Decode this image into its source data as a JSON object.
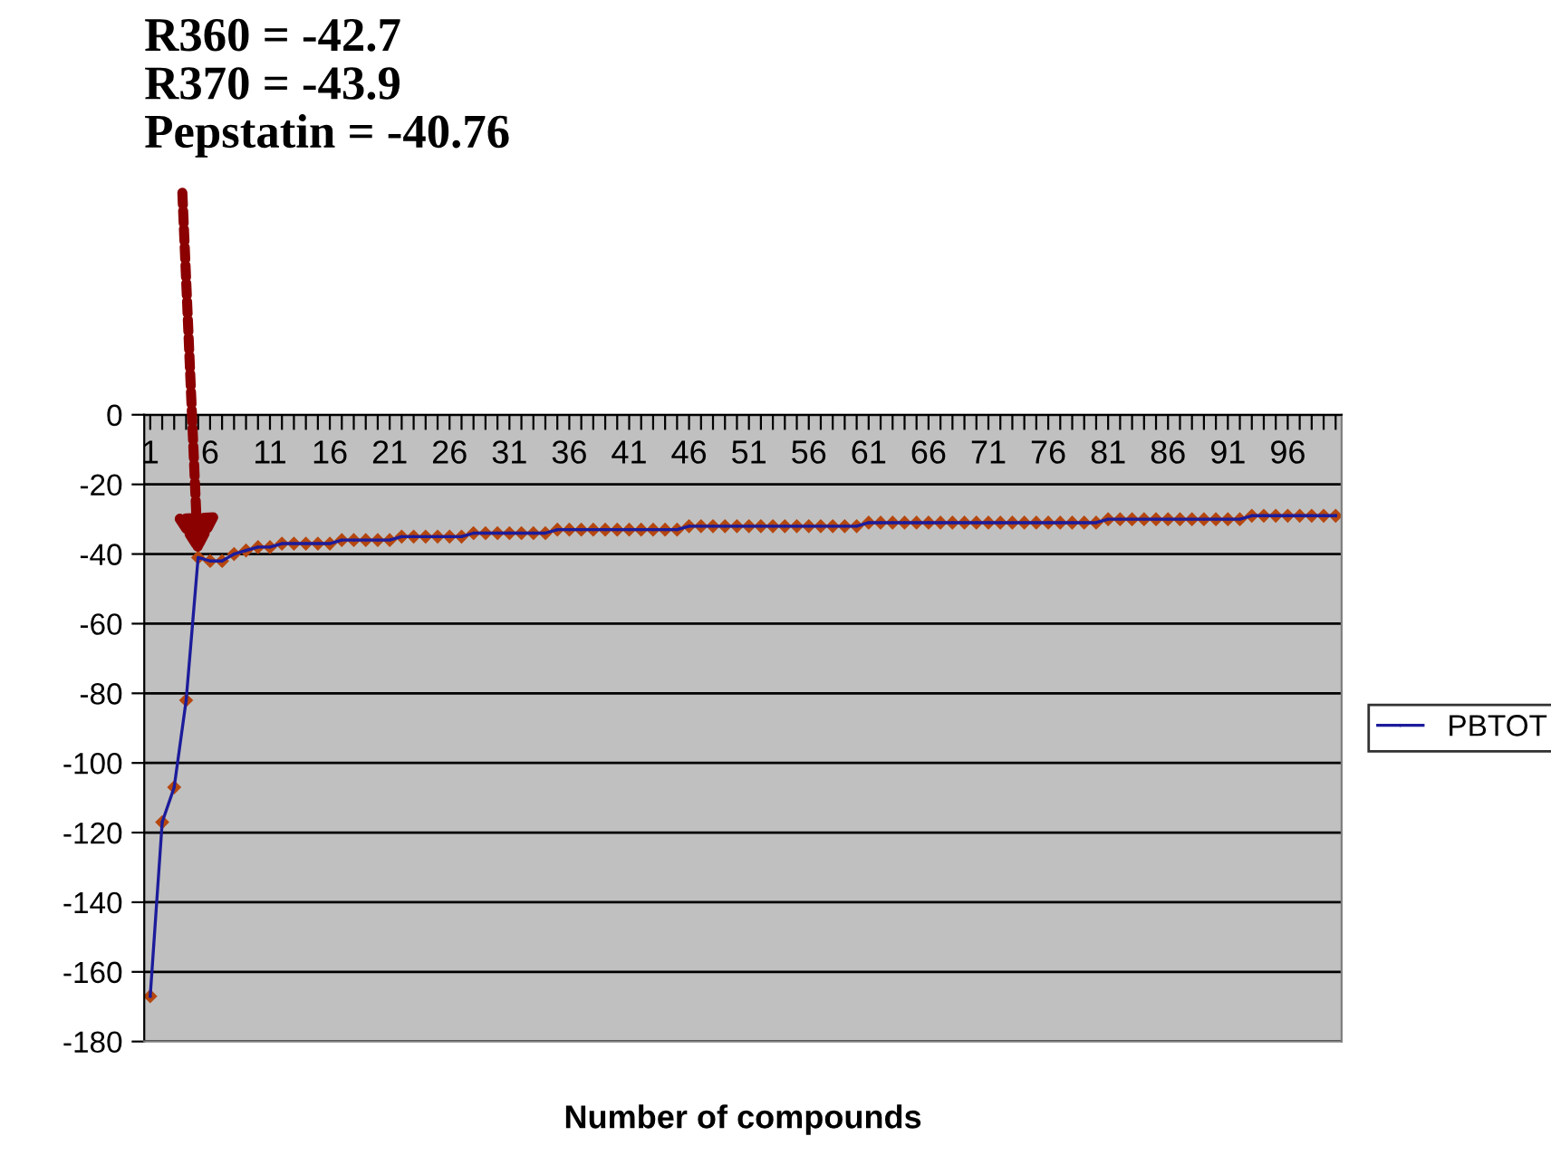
{
  "chart_data": {
    "type": "line",
    "xlabel": "Number of compounds",
    "x": [
      1,
      2,
      3,
      4,
      5,
      6,
      7,
      8,
      9,
      10,
      11,
      12,
      13,
      14,
      15,
      16,
      17,
      18,
      19,
      20,
      21,
      22,
      23,
      24,
      25,
      26,
      27,
      28,
      29,
      30,
      31,
      32,
      33,
      34,
      35,
      36,
      37,
      38,
      39,
      40,
      41,
      42,
      43,
      44,
      45,
      46,
      47,
      48,
      49,
      50,
      51,
      52,
      53,
      54,
      55,
      56,
      57,
      58,
      59,
      60,
      61,
      62,
      63,
      64,
      65,
      66,
      67,
      68,
      69,
      70,
      71,
      72,
      73,
      74,
      75,
      76,
      77,
      78,
      79,
      80,
      81,
      82,
      83,
      84,
      85,
      86,
      87,
      88,
      89,
      90,
      91,
      92,
      93,
      94,
      95,
      96,
      97,
      98,
      99,
      100
    ],
    "series": [
      {
        "name": "PBTOT",
        "color": "#b5470f",
        "values": [
          -167,
          -117,
          -107,
          -82,
          -41,
          -42,
          -42,
          -40,
          -39,
          -38,
          -38,
          -37,
          -37,
          -37,
          -37,
          -37,
          -36,
          -36,
          -36,
          -36,
          -36,
          -35,
          -35,
          -35,
          -35,
          -35,
          -35,
          -34,
          -34,
          -34,
          -34,
          -34,
          -34,
          -34,
          -33,
          -33,
          -33,
          -33,
          -33,
          -33,
          -33,
          -33,
          -33,
          -33,
          -33,
          -32,
          -32,
          -32,
          -32,
          -32,
          -32,
          -32,
          -32,
          -32,
          -32,
          -32,
          -32,
          -32,
          -32,
          -32,
          -31,
          -31,
          -31,
          -31,
          -31,
          -31,
          -31,
          -31,
          -31,
          -31,
          -31,
          -31,
          -31,
          -31,
          -31,
          -31,
          -31,
          -31,
          -31,
          -31,
          -30,
          -30,
          -30,
          -30,
          -30,
          -30,
          -30,
          -30,
          -30,
          -30,
          -30,
          -30,
          -29,
          -29,
          -29,
          -29,
          -29,
          -29,
          -29,
          -29
        ]
      }
    ],
    "xlim": [
      0.5,
      100.5
    ],
    "xticks": [
      1,
      {
        "value": 2,
        "label": null
      },
      {
        "value": 3,
        "label": null
      },
      {
        "value": 4,
        "label": null
      },
      {
        "value": 5,
        "label": null
      },
      6,
      {
        "value": 7,
        "label": null
      },
      {
        "value": 8,
        "label": null
      },
      {
        "value": 9,
        "label": null
      },
      {
        "value": 10,
        "label": null
      },
      11,
      {
        "value": 12,
        "label": null
      },
      {
        "value": 13,
        "label": null
      },
      {
        "value": 14,
        "label": null
      },
      {
        "value": 15,
        "label": null
      },
      16,
      {
        "value": 17,
        "label": null
      },
      {
        "value": 18,
        "label": null
      },
      {
        "value": 19,
        "label": null
      },
      {
        "value": 20,
        "label": null
      },
      21,
      {
        "value": 22,
        "label": null
      },
      {
        "value": 23,
        "label": null
      },
      {
        "value": 24,
        "label": null
      },
      {
        "value": 25,
        "label": null
      },
      26,
      {
        "value": 27,
        "label": null
      },
      {
        "value": 28,
        "label": null
      },
      {
        "value": 29,
        "label": null
      },
      {
        "value": 30,
        "label": null
      },
      31,
      {
        "value": 32,
        "label": null
      },
      {
        "value": 33,
        "label": null
      },
      {
        "value": 34,
        "label": null
      },
      {
        "value": 35,
        "label": null
      },
      36,
      {
        "value": 37,
        "label": null
      },
      {
        "value": 38,
        "label": null
      },
      {
        "value": 39,
        "label": null
      },
      {
        "value": 40,
        "label": null
      },
      41,
      {
        "value": 42,
        "label": null
      },
      {
        "value": 43,
        "label": null
      },
      {
        "value": 44,
        "label": null
      },
      {
        "value": 45,
        "label": null
      },
      46,
      {
        "value": 47,
        "label": null
      },
      {
        "value": 48,
        "label": null
      },
      {
        "value": 49,
        "label": null
      },
      {
        "value": 50,
        "label": null
      },
      51,
      {
        "value": 52,
        "label": null
      },
      {
        "value": 53,
        "label": null
      },
      {
        "value": 54,
        "label": null
      },
      {
        "value": 55,
        "label": null
      },
      56,
      {
        "value": 57,
        "label": null
      },
      {
        "value": 58,
        "label": null
      },
      {
        "value": 59,
        "label": null
      },
      {
        "value": 60,
        "label": null
      },
      61,
      {
        "value": 62,
        "label": null
      },
      {
        "value": 63,
        "label": null
      },
      {
        "value": 64,
        "label": null
      },
      {
        "value": 65,
        "label": null
      },
      66,
      {
        "value": 67,
        "label": null
      },
      {
        "value": 68,
        "label": null
      },
      {
        "value": 69,
        "label": null
      },
      {
        "value": 70,
        "label": null
      },
      71,
      {
        "value": 72,
        "label": null
      },
      {
        "value": 73,
        "label": null
      },
      {
        "value": 74,
        "label": null
      },
      {
        "value": 75,
        "label": null
      },
      76,
      {
        "value": 77,
        "label": null
      },
      {
        "value": 78,
        "label": null
      },
      {
        "value": 79,
        "label": null
      },
      {
        "value": 80,
        "label": null
      },
      81,
      {
        "value": 82,
        "label": null
      },
      {
        "value": 83,
        "label": null
      },
      {
        "value": 84,
        "label": null
      },
      {
        "value": 85,
        "label": null
      },
      86,
      {
        "value": 87,
        "label": null
      },
      {
        "value": 88,
        "label": null
      },
      {
        "value": 89,
        "label": null
      },
      {
        "value": 90,
        "label": null
      },
      91,
      {
        "value": 92,
        "label": null
      },
      {
        "value": 93,
        "label": null
      },
      {
        "value": 94,
        "label": null
      },
      {
        "value": 95,
        "label": null
      },
      96,
      {
        "value": 97,
        "label": null
      },
      {
        "value": 98,
        "label": null
      },
      {
        "value": 99,
        "label": null
      },
      {
        "value": 100,
        "label": null
      }
    ],
    "ylim": [
      -180,
      0
    ],
    "yticks": [
      0,
      -20,
      -40,
      -60,
      -80,
      -100,
      -120,
      -140,
      -160,
      -180
    ],
    "grid": "y",
    "legend": "right",
    "marker": "diamond",
    "line_style": "solid",
    "annotations": [
      {
        "text": "R360 = -42.7\nR370 = -43.9\nPepstatin = -40.76",
        "x": 5,
        "y": -40.76
      }
    ]
  }
}
